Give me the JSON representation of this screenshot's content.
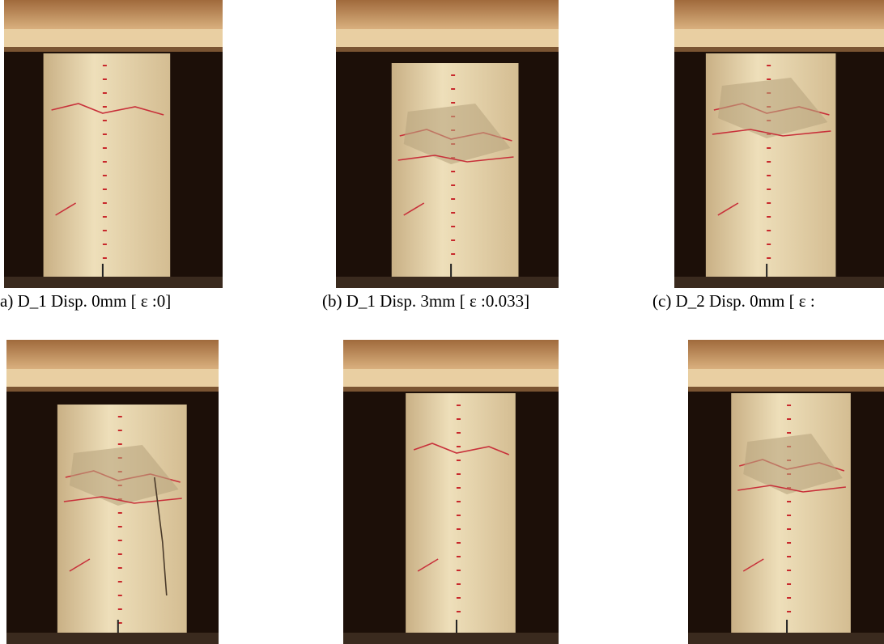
{
  "figure": {
    "captions": [
      "a) D_1 Disp. 0mm [ ε :0]",
      "(b) D_1 Disp. 3mm [ ε :0.033]",
      "(c) D_2 Disp. 0mm [ ε :"
    ]
  }
}
